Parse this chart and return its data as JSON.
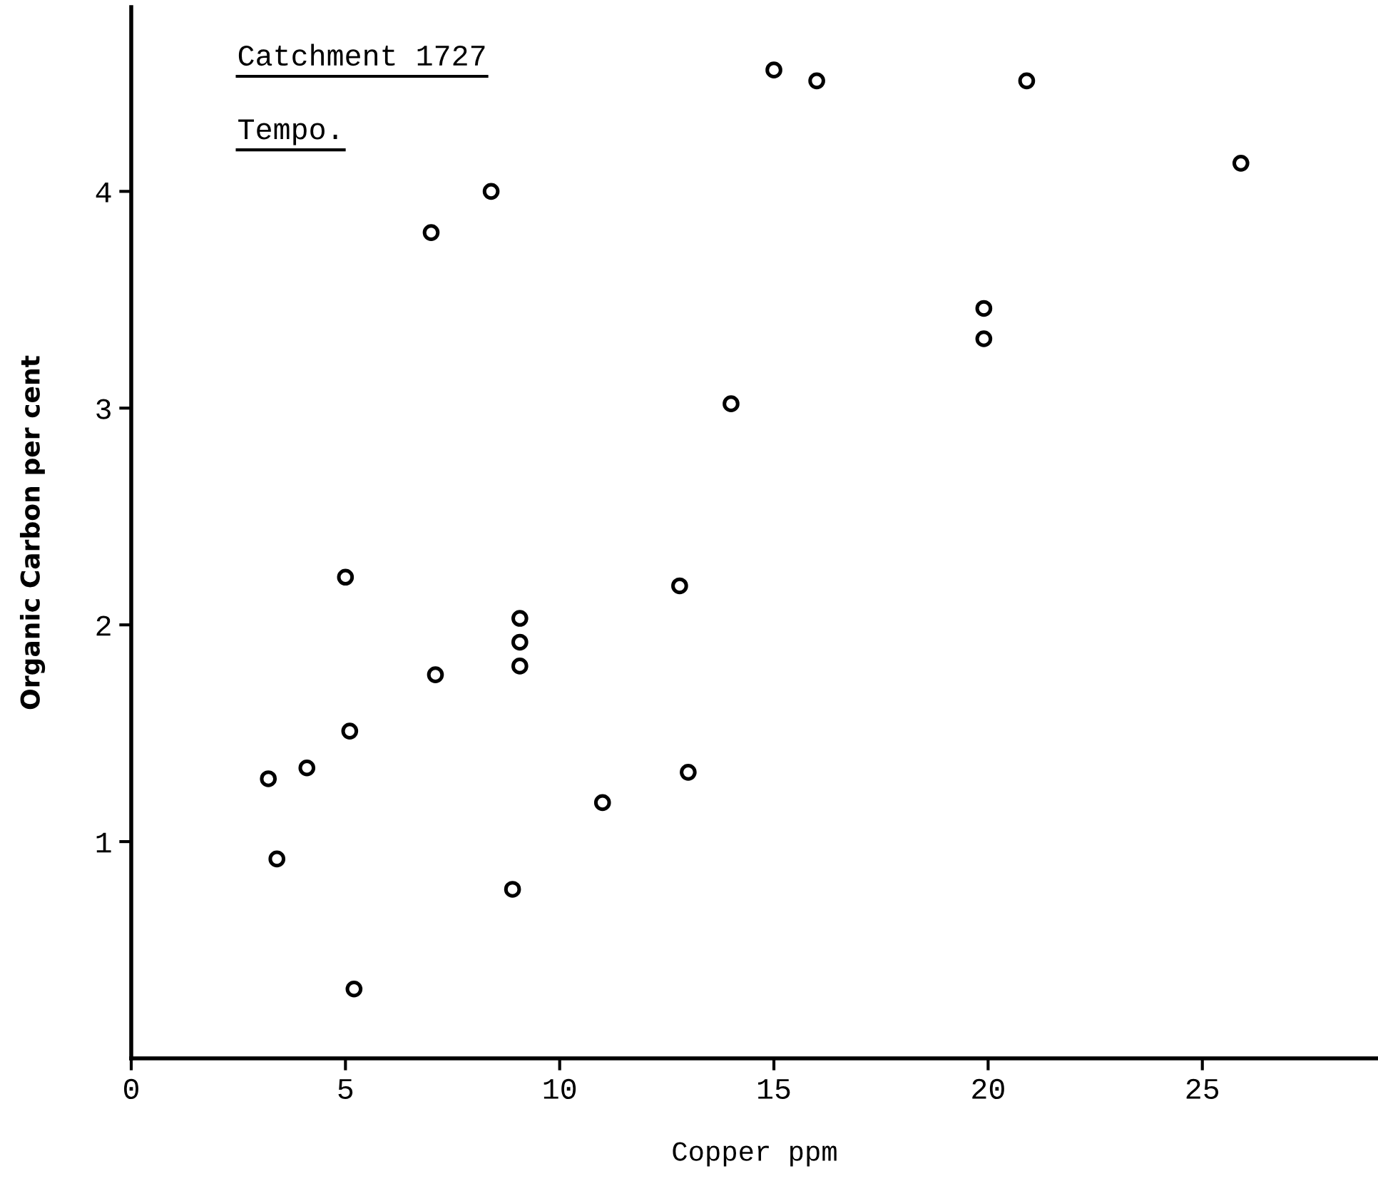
{
  "chart_data": {
    "type": "scatter",
    "xlabel": "Copper ppm",
    "ylabel": "Organic Carbon per cent",
    "annotations": [
      "Catchment 1727",
      "Tempo."
    ],
    "x": [
      15.0,
      16.0,
      20.9,
      25.9,
      8.4,
      7.0,
      19.9,
      19.9,
      14.0,
      5.0,
      12.8,
      9.07,
      9.07,
      9.07,
      7.1,
      5.1,
      4.1,
      3.2,
      13.0,
      11.0,
      3.4,
      8.9,
      5.2
    ],
    "values": [
      4.56,
      4.51,
      4.51,
      4.13,
      4.0,
      3.81,
      3.46,
      3.32,
      3.02,
      2.22,
      2.18,
      2.03,
      1.92,
      1.81,
      1.77,
      1.51,
      1.34,
      1.29,
      1.32,
      1.18,
      0.92,
      0.78,
      0.32
    ],
    "color": "#000000",
    "marker": "circle",
    "xlim": [
      0,
      29.1
    ],
    "ylim": [
      0,
      4.85
    ],
    "xticks": [
      0,
      5,
      10,
      15,
      20,
      25
    ],
    "yticks": [
      1,
      2,
      3,
      4
    ],
    "grid": false
  }
}
